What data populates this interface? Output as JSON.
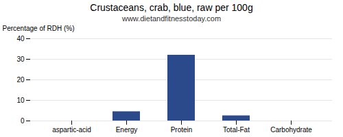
{
  "chart_data": {
    "type": "bar",
    "title": "Crustaceans, crab, blue, raw per 100g",
    "subtitle": "www.dietandfitnesstoday.com",
    "categories": [
      "aspartic-acid",
      "Energy",
      "Protein",
      "Total-Fat",
      "Carbohydrate"
    ],
    "values": [
      0,
      4.5,
      32,
      2.5,
      0
    ],
    "color": "#2b4a8b",
    "ylabel": "Percentage of RDH (%)",
    "ylim": [
      0,
      40
    ],
    "yticks": [
      0,
      10,
      20,
      30,
      40
    ],
    "grid": true
  }
}
